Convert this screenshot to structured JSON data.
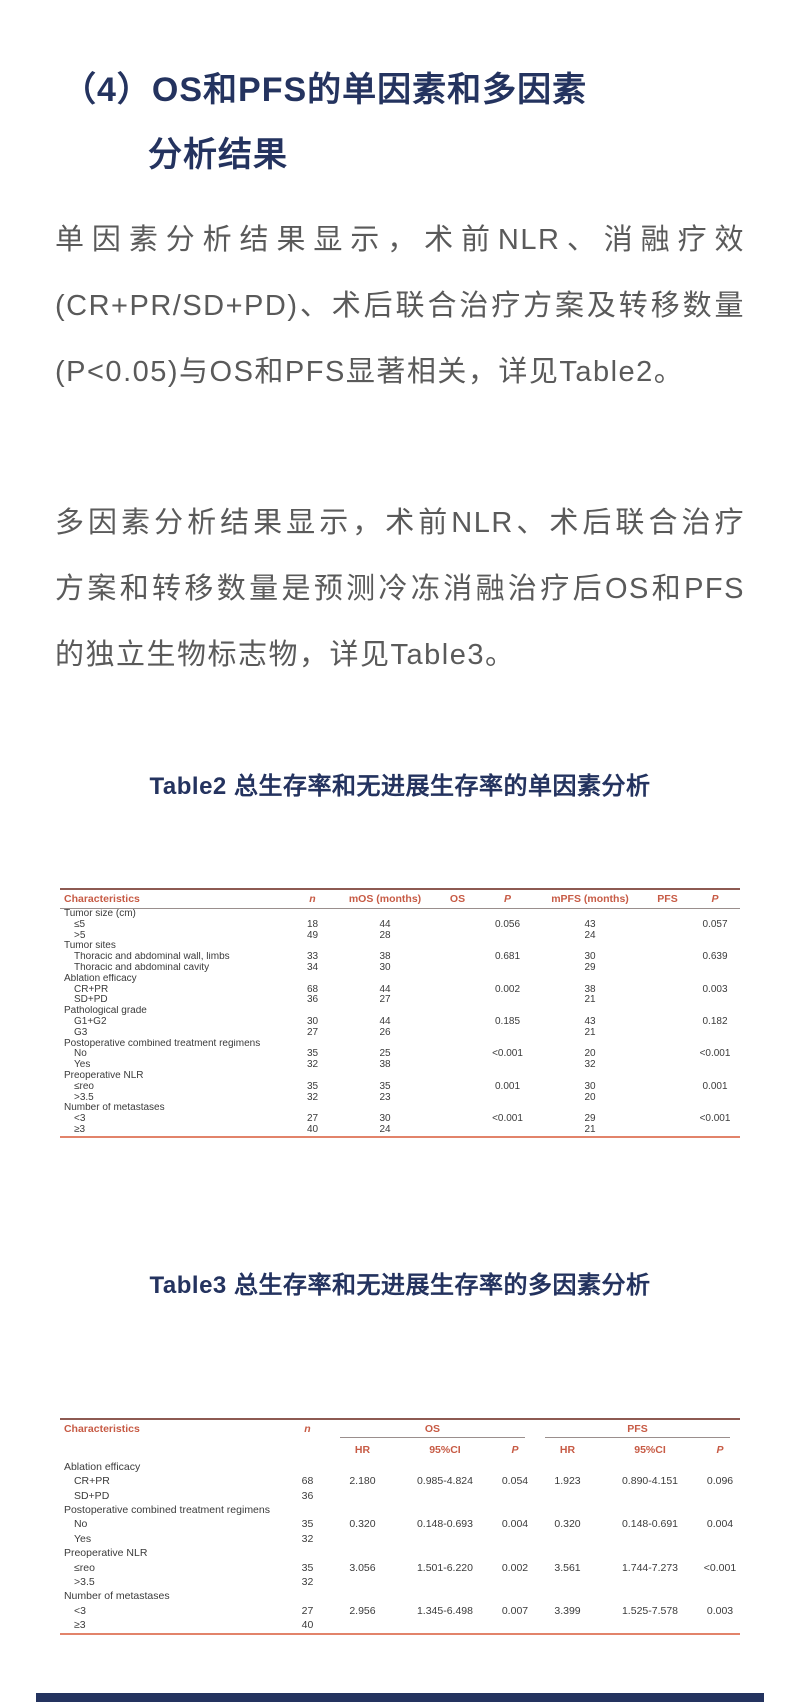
{
  "article": {
    "heading_line1": "（4）OS和PFS的单因素和多因素",
    "heading_line2": "分析结果",
    "p1_lines": [
      "单因素分析结果显示，术前NLR、消融疗效",
      "(CR+PR/SD+PD)、术后联合治疗方案及转移数量",
      "(P<0.05)与OS和PFS显著相关，详见Table2。"
    ],
    "p2_lines": [
      "多因素分析结果显示，术前NLR、术后联合治疗",
      "方案和转移数量是预测冷冻消融治疗后OS和PFS",
      "的独立生物标志物，详见Table3。"
    ]
  },
  "table2": {
    "caption": "Table2 总生存率和无进展生存率的单因素分析",
    "headers": [
      "Characteristics",
      "n",
      "mOS (months)",
      "OS",
      "P",
      "mPFS (months)",
      "PFS",
      "P"
    ],
    "rows": [
      {
        "label": "Tumor size (cm)",
        "indent": false,
        "cells": [
          "",
          "",
          "",
          "",
          "",
          "",
          ""
        ]
      },
      {
        "label": "≤5",
        "indent": true,
        "cells": [
          "18",
          "44",
          "",
          "0.056",
          "43",
          "",
          "0.057"
        ]
      },
      {
        "label": ">5",
        "indent": true,
        "cells": [
          "49",
          "28",
          "",
          "",
          "24",
          "",
          ""
        ]
      },
      {
        "label": "Tumor sites",
        "indent": false,
        "cells": [
          "",
          "",
          "",
          "",
          "",
          "",
          ""
        ]
      },
      {
        "label": "Thoracic and abdominal wall, limbs",
        "indent": true,
        "cells": [
          "33",
          "38",
          "",
          "0.681",
          "30",
          "",
          "0.639"
        ]
      },
      {
        "label": "Thoracic and abdominal cavity",
        "indent": true,
        "cells": [
          "34",
          "30",
          "",
          "",
          "29",
          "",
          ""
        ]
      },
      {
        "label": "Ablation efficacy",
        "indent": false,
        "cells": [
          "",
          "",
          "",
          "",
          "",
          "",
          ""
        ]
      },
      {
        "label": "CR+PR",
        "indent": true,
        "cells": [
          "68",
          "44",
          "",
          "0.002",
          "38",
          "",
          "0.003"
        ]
      },
      {
        "label": "SD+PD",
        "indent": true,
        "cells": [
          "36",
          "27",
          "",
          "",
          "21",
          "",
          ""
        ]
      },
      {
        "label": "Pathological grade",
        "indent": false,
        "cells": [
          "",
          "",
          "",
          "",
          "",
          "",
          ""
        ]
      },
      {
        "label": "G1+G2",
        "indent": true,
        "cells": [
          "30",
          "44",
          "",
          "0.185",
          "43",
          "",
          "0.182"
        ]
      },
      {
        "label": "G3",
        "indent": true,
        "cells": [
          "27",
          "26",
          "",
          "",
          "21",
          "",
          ""
        ]
      },
      {
        "label": "Postoperative combined treatment regimens",
        "indent": false,
        "cells": [
          "",
          "",
          "",
          "",
          "",
          "",
          ""
        ]
      },
      {
        "label": "No",
        "indent": true,
        "cells": [
          "35",
          "25",
          "",
          "<0.001",
          "20",
          "",
          "<0.001"
        ]
      },
      {
        "label": "Yes",
        "indent": true,
        "cells": [
          "32",
          "38",
          "",
          "",
          "32",
          "",
          ""
        ]
      },
      {
        "label": "Preoperative NLR",
        "indent": false,
        "cells": [
          "",
          "",
          "",
          "",
          "",
          "",
          ""
        ]
      },
      {
        "label": "≤reo",
        "indent": true,
        "cells": [
          "35",
          "35",
          "",
          "0.001",
          "30",
          "",
          "0.001"
        ]
      },
      {
        "label": ">3.5",
        "indent": true,
        "cells": [
          "32",
          "23",
          "",
          "",
          "20",
          "",
          ""
        ]
      },
      {
        "label": "Number of metastases",
        "indent": false,
        "cells": [
          "",
          "",
          "",
          "",
          "",
          "",
          ""
        ]
      },
      {
        "label": "<3",
        "indent": true,
        "cells": [
          "27",
          "30",
          "",
          "<0.001",
          "29",
          "",
          "<0.001"
        ]
      },
      {
        "label": "≥3",
        "indent": true,
        "cells": [
          "40",
          "24",
          "",
          "",
          "21",
          "",
          ""
        ]
      }
    ]
  },
  "table3": {
    "caption": "Table3 总生存率和无进展生存率的多因素分析",
    "header_top": [
      "Characteristics",
      "n",
      "OS",
      "PFS"
    ],
    "header_sub": [
      "HR",
      "95%CI",
      "P",
      "HR",
      "95%CI",
      "P"
    ],
    "rows": [
      {
        "label": "Ablation efficacy",
        "indent": false,
        "cells": [
          "",
          "",
          "",
          "",
          "",
          "",
          ""
        ]
      },
      {
        "label": "CR+PR",
        "indent": true,
        "cells": [
          "68",
          "2.180",
          "0.985-4.824",
          "0.054",
          "1.923",
          "0.890-4.151",
          "0.096"
        ]
      },
      {
        "label": "SD+PD",
        "indent": true,
        "cells": [
          "36",
          "",
          "",
          "",
          "",
          "",
          ""
        ]
      },
      {
        "label": "Postoperative combined treatment regimens",
        "indent": false,
        "cells": [
          "",
          "",
          "",
          "",
          "",
          "",
          ""
        ]
      },
      {
        "label": "No",
        "indent": true,
        "cells": [
          "35",
          "0.320",
          "0.148-0.693",
          "0.004",
          "0.320",
          "0.148-0.691",
          "0.004"
        ]
      },
      {
        "label": "Yes",
        "indent": true,
        "cells": [
          "32",
          "",
          "",
          "",
          "",
          "",
          ""
        ]
      },
      {
        "label": "Preoperative NLR",
        "indent": false,
        "cells": [
          "",
          "",
          "",
          "",
          "",
          "",
          ""
        ]
      },
      {
        "label": "≤reo",
        "indent": true,
        "cells": [
          "35",
          "3.056",
          "1.501-6.220",
          "0.002",
          "3.561",
          "1.744-7.273",
          "<0.001"
        ]
      },
      {
        "label": ">3.5",
        "indent": true,
        "cells": [
          "32",
          "",
          "",
          "",
          "",
          "",
          ""
        ]
      },
      {
        "label": "Number of metastases",
        "indent": false,
        "cells": [
          "",
          "",
          "",
          "",
          "",
          "",
          ""
        ]
      },
      {
        "label": "<3",
        "indent": true,
        "cells": [
          "27",
          "2.956",
          "1.345-6.498",
          "0.007",
          "3.399",
          "1.525-7.578",
          "0.003"
        ]
      },
      {
        "label": "≥3",
        "indent": true,
        "cells": [
          "40",
          "",
          "",
          "",
          "",
          "",
          ""
        ]
      }
    ]
  },
  "colors": {
    "heading_navy": "#24335f",
    "body_text_gray": "#5a5a5a",
    "table_header_orange": "#c75b45",
    "table_top_border": "#8d5a52",
    "table_bottom_border": "#e2836a",
    "table_rule_gray": "#9a8f8d",
    "bottom_bar_navy": "#24335f"
  }
}
